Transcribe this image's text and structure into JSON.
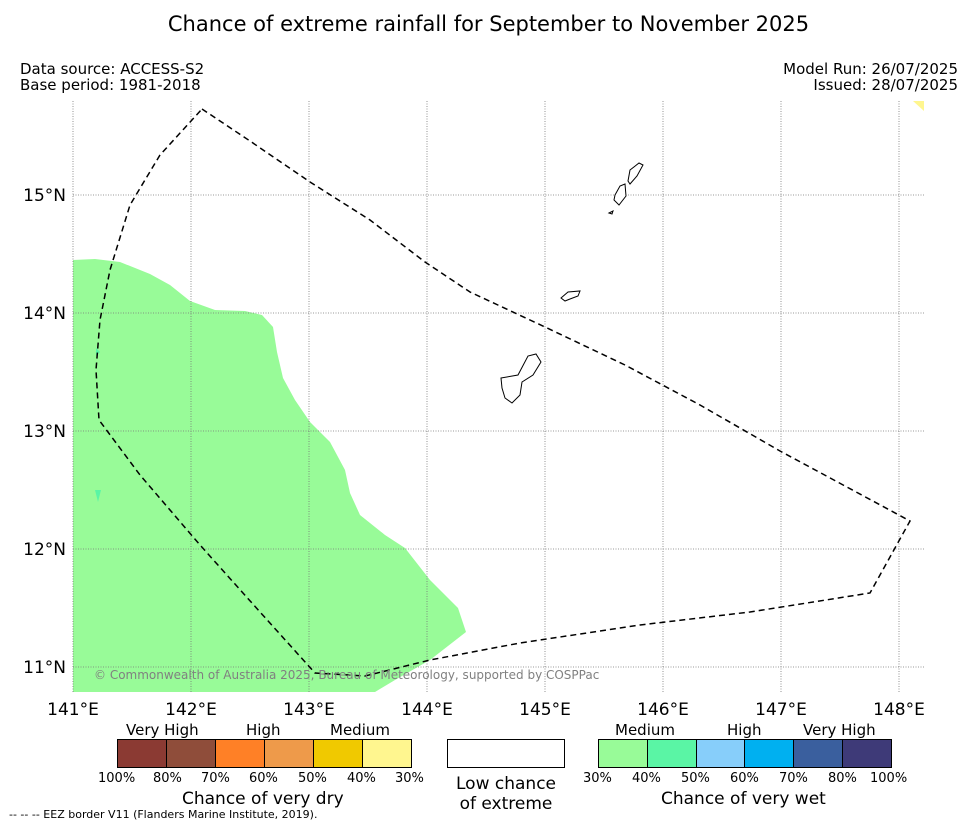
{
  "title": "Chance of extreme rainfall for September to November 2025",
  "header": {
    "data_source": "Data source: ACCESS-S2",
    "base_period": "Base period: 1981-2018",
    "model_run": "Model Run: 26/07/2025",
    "issued": "Issued: 28/07/2025"
  },
  "map": {
    "lon_labels": [
      "141°E",
      "142°E",
      "143°E",
      "144°E",
      "145°E",
      "146°E",
      "147°E",
      "148°E"
    ],
    "lat_labels": [
      "15°N",
      "14°N",
      "13°N",
      "12°N",
      "11°N"
    ],
    "copyright": "© Commonwealth of Australia 2025, Bureau of Meteorology, supported by COSPPac",
    "region_colors": {
      "medium_wet": "#98fb98",
      "wetter_patch": "#5af5a5",
      "dry_corner": "#fff68f"
    },
    "eez_line": "dashed black"
  },
  "legend": {
    "dry": {
      "levels": [
        "Very High",
        "High",
        "Medium"
      ],
      "colors": [
        "#8b3a33",
        "#8f4d3a",
        "#ff8026",
        "#ee9a4a",
        "#f0c900",
        "#fff68f"
      ],
      "pct": [
        "100%",
        "80%",
        "70%",
        "60%",
        "50%",
        "40%",
        "30%"
      ],
      "title": "Chance of very dry"
    },
    "low": {
      "line1": "Low chance",
      "line2": "of extreme"
    },
    "wet": {
      "levels": [
        "Medium",
        "High",
        "Very High"
      ],
      "colors": [
        "#98fb98",
        "#5af5a5",
        "#87cefa",
        "#00b0f0",
        "#3a5f9e",
        "#3e3a78"
      ],
      "pct": [
        "30%",
        "40%",
        "50%",
        "60%",
        "70%",
        "80%",
        "100%"
      ],
      "title": "Chance of very wet"
    }
  },
  "footnote": "--  --  -- EEZ border V11 (Flanders Marine Institute, 2019)."
}
